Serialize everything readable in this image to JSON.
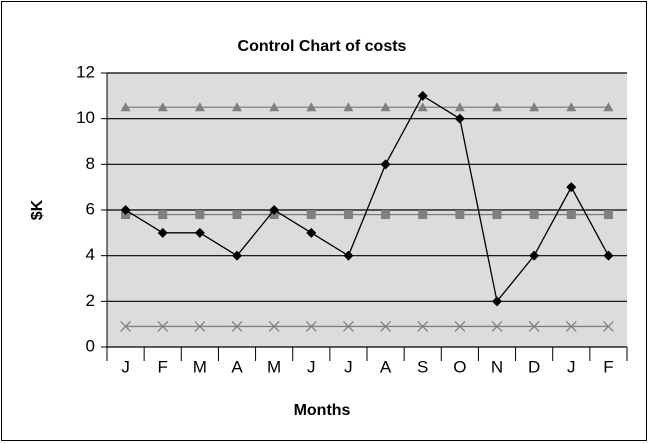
{
  "chart_data": {
    "type": "line",
    "title": "Control Chart of costs",
    "xlabel": "Months",
    "ylabel": "$K",
    "categories": [
      "J",
      "F",
      "M",
      "A",
      "M",
      "J",
      "J",
      "A",
      "S",
      "O",
      "N",
      "D",
      "J",
      "F"
    ],
    "series": [
      {
        "color": "#000000",
        "marker": "diamond",
        "values": [
          6,
          5,
          5,
          4,
          6,
          5,
          4,
          8,
          11,
          10,
          2,
          4,
          7,
          4
        ]
      },
      {
        "color": "#808080",
        "marker": "triangle",
        "values": [
          10.5,
          10.5,
          10.5,
          10.5,
          10.5,
          10.5,
          10.5,
          10.5,
          10.5,
          10.5,
          10.5,
          10.5,
          10.5,
          10.5
        ]
      },
      {
        "color": "#808080",
        "marker": "square",
        "values": [
          5.8,
          5.8,
          5.8,
          5.8,
          5.8,
          5.8,
          5.8,
          5.8,
          5.8,
          5.8,
          5.8,
          5.8,
          5.8,
          5.8
        ]
      },
      {
        "color": "#808080",
        "marker": "x",
        "values": [
          0.9,
          0.9,
          0.9,
          0.9,
          0.9,
          0.9,
          0.9,
          0.9,
          0.9,
          0.9,
          0.9,
          0.9,
          0.9,
          0.9
        ]
      }
    ],
    "ylim": [
      0,
      12
    ],
    "yticks": [
      0,
      2,
      4,
      6,
      8,
      10,
      12
    ],
    "grid": true
  }
}
